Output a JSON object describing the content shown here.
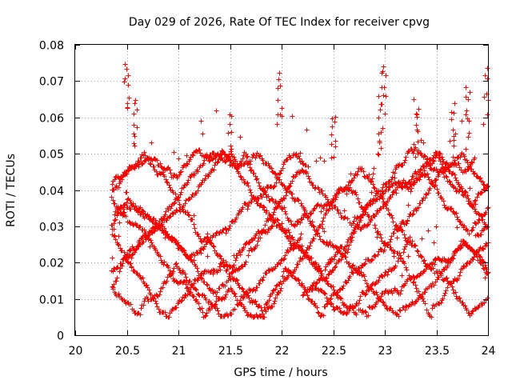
{
  "chart_data": {
    "type": "scatter",
    "title": "Day 029 of 2026, Rate Of TEC Index for receiver cpvg",
    "xlabel": "GPS time / hours",
    "ylabel": "ROTI / TECUs",
    "xlim": [
      20,
      24
    ],
    "ylim": [
      0,
      0.08
    ],
    "xticks": [
      "20",
      "20.5",
      "21",
      "21.5",
      "22",
      "22.5",
      "23",
      "23.5",
      "24"
    ],
    "yticks": [
      "0",
      "0.01",
      "0.02",
      "0.03",
      "0.04",
      "0.05",
      "0.06",
      "0.07",
      "0.08"
    ],
    "grid": true,
    "marker": "+",
    "series": [
      {
        "name": "ROTI",
        "color": "#ff0000",
        "x_range": [
          20.35,
          24.0
        ],
        "sample_interval_hours": 0.00115,
        "typical_range": [
          0.005,
          0.05
        ],
        "peaks": [
          {
            "x": 20.5,
            "y": 0.077
          },
          {
            "x": 20.58,
            "y": 0.067
          },
          {
            "x": 21.5,
            "y": 0.063
          },
          {
            "x": 21.98,
            "y": 0.073
          },
          {
            "x": 22.5,
            "y": 0.063
          },
          {
            "x": 22.95,
            "y": 0.066
          },
          {
            "x": 22.99,
            "y": 0.077
          },
          {
            "x": 23.3,
            "y": 0.066
          },
          {
            "x": 23.65,
            "y": 0.065
          },
          {
            "x": 23.8,
            "y": 0.07
          },
          {
            "x": 23.98,
            "y": 0.075
          }
        ]
      }
    ]
  }
}
